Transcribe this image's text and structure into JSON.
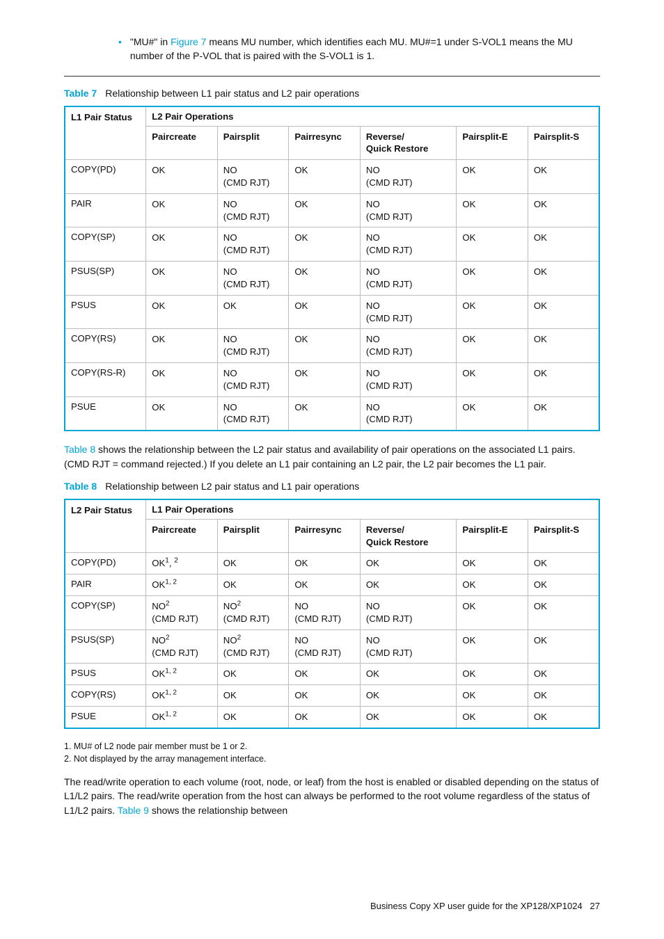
{
  "colors": {
    "accent": "#00a6d6",
    "border": "#bcbcbc",
    "text": "#111",
    "rule": "#333"
  },
  "bullet": {
    "pre": "\"MU#\" in ",
    "linkText": "Figure 7",
    "post": " means MU number, which identifies each MU. MU#=1 under S-VOL1 means the MU number of the P-VOL that is paired with the S-VOL1 is 1."
  },
  "table7": {
    "captionLabel": "Table 7",
    "captionText": "Relationship between L1 pair status and L2 pair operations",
    "statusHeader": "L1 Pair Status",
    "opsHeader": "L2 Pair Operations",
    "cols": [
      "Paircreate",
      "Pairsplit",
      "Pairresync",
      "Reverse/\nQuick Restore",
      "Pairsplit-E",
      "Pairsplit-S"
    ],
    "rows": [
      {
        "status": "COPY(PD)",
        "cells": [
          "OK",
          "NO\n(CMD RJT)",
          "OK",
          "NO\n(CMD RJT)",
          "OK",
          "OK"
        ]
      },
      {
        "status": "PAIR",
        "cells": [
          "OK",
          "NO\n(CMD RJT)",
          "OK",
          "NO\n(CMD RJT)",
          "OK",
          "OK"
        ]
      },
      {
        "status": "COPY(SP)",
        "cells": [
          "OK",
          "NO\n(CMD RJT)",
          "OK",
          "NO\n(CMD RJT)",
          "OK",
          "OK"
        ]
      },
      {
        "status": "PSUS(SP)",
        "cells": [
          "OK",
          "NO\n(CMD RJT)",
          "OK",
          "NO\n(CMD RJT)",
          "OK",
          "OK"
        ]
      },
      {
        "status": "PSUS",
        "cells": [
          "OK",
          "OK",
          "OK",
          "NO\n(CMD RJT)",
          "OK",
          "OK"
        ]
      },
      {
        "status": "COPY(RS)",
        "cells": [
          "OK",
          "NO\n(CMD RJT)",
          "OK",
          "NO\n(CMD RJT)",
          "OK",
          "OK"
        ]
      },
      {
        "status": "COPY(RS-R)",
        "cells": [
          "OK",
          "NO\n(CMD RJT)",
          "OK",
          "NO\n(CMD RJT)",
          "OK",
          "OK"
        ]
      },
      {
        "status": "PSUE",
        "cells": [
          "OK",
          "NO\n(CMD RJT)",
          "OK",
          "NO\n(CMD RJT)",
          "OK",
          "OK"
        ]
      }
    ]
  },
  "mid": {
    "linkText": "Table 8",
    "post": " shows the relationship between the L2 pair status and availability of pair operations on the associated L1 pairs. (CMD RJT = command rejected.) If you delete an L1 pair containing an L2 pair, the L2 pair becomes the L1 pair."
  },
  "table8": {
    "captionLabel": "Table 8",
    "captionText": "Relationship between L2 pair status and L1 pair operations",
    "statusHeader": "L2 Pair Status",
    "opsHeader": "L1 Pair Operations",
    "cols": [
      "Paircreate",
      "Pairsplit",
      "Pairresync",
      "Reverse/\nQuick Restore",
      "Pairsplit-E",
      "Pairsplit-S"
    ],
    "rows": [
      {
        "status": "COPY(PD)",
        "cells": [
          "OK<sup>1</sup>, <sup>2</sup>",
          "OK",
          "OK",
          "OK",
          "OK",
          "OK"
        ]
      },
      {
        "status": "PAIR",
        "cells": [
          "OK<sup>1, 2</sup>",
          "OK",
          "OK",
          "OK",
          "OK",
          "OK"
        ]
      },
      {
        "status": "COPY(SP)",
        "cells": [
          "NO<sup>2</sup>\n(CMD RJT)",
          "NO<sup>2</sup>\n(CMD RJT)",
          "NO\n(CMD RJT)",
          "NO\n(CMD RJT)",
          "OK",
          "OK"
        ]
      },
      {
        "status": "PSUS(SP)",
        "cells": [
          "NO<sup>2</sup>\n(CMD RJT)",
          "NO<sup>2</sup>\n(CMD RJT)",
          "NO\n(CMD RJT)",
          "NO\n(CMD RJT)",
          "OK",
          "OK"
        ]
      },
      {
        "status": "PSUS",
        "cells": [
          "OK<sup>1, 2</sup>",
          "OK",
          "OK",
          "OK",
          "OK",
          "OK"
        ]
      },
      {
        "status": "COPY(RS)",
        "cells": [
          "OK<sup>1, 2</sup>",
          "OK",
          "OK",
          "OK",
          "OK",
          "OK"
        ]
      },
      {
        "status": "PSUE",
        "cells": [
          "OK<sup>1, 2</sup>",
          "OK",
          "OK",
          "OK",
          "OK",
          "OK"
        ]
      }
    ],
    "footnotes": [
      "1.  MU# of L2 node pair member must be 1 or 2.",
      "2.  Not displayed by the array management interface."
    ]
  },
  "tail": {
    "pre": "The read/write operation to each volume (root, node, or leaf) from the host is enabled or disabled depending on the status of L1/L2 pairs. The read/write operation from the host can always be performed to the root volume regardless of the status of L1/L2 pairs. ",
    "linkText": "Table 9",
    "post": " shows the relationship between"
  },
  "footer": {
    "text": "Business Copy XP user guide for the XP128/XP1024",
    "page": "27"
  }
}
